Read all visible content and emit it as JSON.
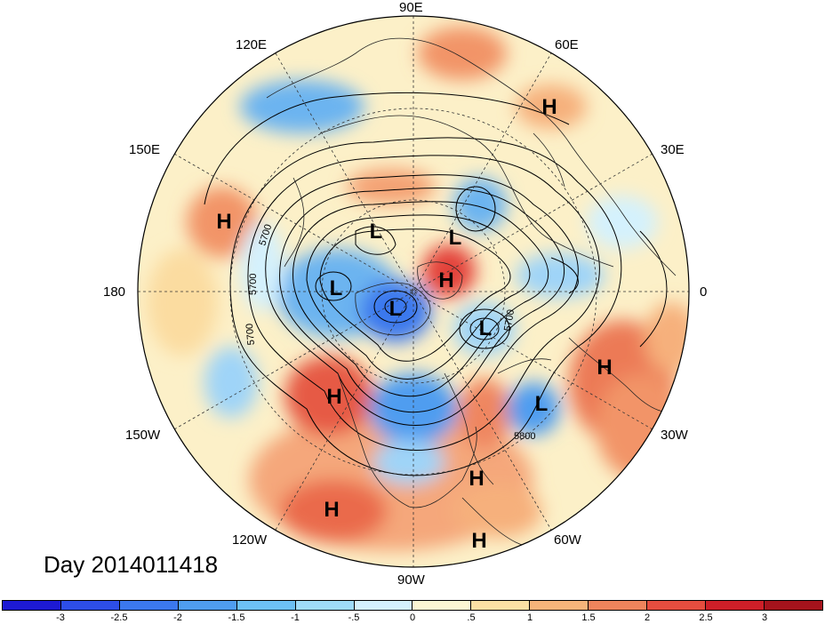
{
  "title": "Day 2014011418",
  "longitude_labels": {
    "lon_90e": "90E",
    "lon_60e": "60E",
    "lon_30e": "30E",
    "lon_0": "0",
    "lon_30w": "30W",
    "lon_60w": "60W",
    "lon_90w": "90W",
    "lon_120w": "120W",
    "lon_150w": "150W",
    "lon_180": "180",
    "lon_150e": "150E",
    "lon_120e": "120E"
  },
  "pressure_centers": [
    {
      "label": "H",
      "id": "h-siberia"
    },
    {
      "label": "H",
      "id": "h-north-pacific-west"
    },
    {
      "label": "L",
      "id": "l-laptev"
    },
    {
      "label": "L",
      "id": "l-kara"
    },
    {
      "label": "L",
      "id": "l-east-siberian"
    },
    {
      "label": "H",
      "id": "h-arctic"
    },
    {
      "label": "L",
      "id": "l-baffin"
    },
    {
      "label": "L",
      "id": "l-greenland-east"
    },
    {
      "label": "H",
      "id": "h-africa"
    },
    {
      "label": "H",
      "id": "h-west-coast"
    },
    {
      "label": "L",
      "id": "l-atlantic"
    },
    {
      "label": "H",
      "id": "h-caribbean"
    },
    {
      "label": "H",
      "id": "h-east-pacific"
    },
    {
      "label": "H",
      "id": "h-south-america"
    }
  ],
  "contour_labels": [
    "5700",
    "5700",
    "5700",
    "5700",
    "5800"
  ],
  "colorbar": {
    "ticks": [
      "-3",
      "-2.5",
      "-2",
      "-1.5",
      "-1",
      "-.5",
      "0",
      ".5",
      "1",
      "1.5",
      "2",
      "2.5",
      "3"
    ],
    "colors": [
      "#1d1ad3",
      "#2d4ee8",
      "#3b78ee",
      "#4f9df0",
      "#6cc0f5",
      "#9fdcfa",
      "#d4f1fd",
      "#fcf6d3",
      "#fbe0a4",
      "#f6b47a",
      "#ef845c",
      "#e64d3f",
      "#cd1f28",
      "#a5131c"
    ]
  }
}
